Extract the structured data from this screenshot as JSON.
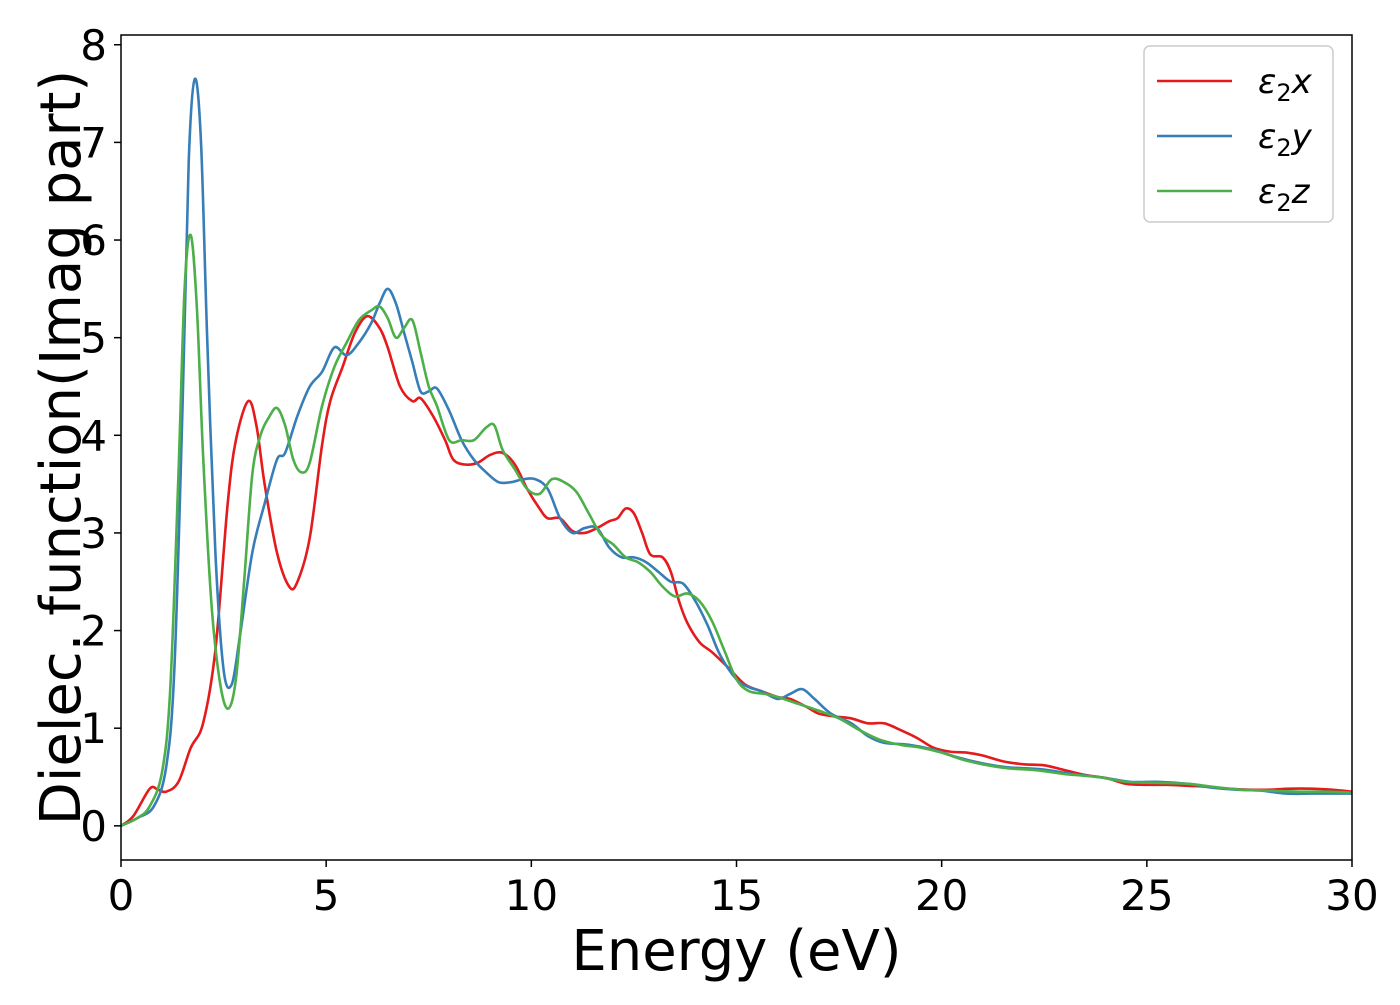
{
  "chart_data": {
    "type": "line",
    "xlabel": "Energy (eV)",
    "ylabel": "Dielec. function(Imag part)",
    "xlim": [
      0,
      30
    ],
    "ylim": [
      -0.35,
      8.1
    ],
    "xticks": [
      0,
      5,
      10,
      15,
      20,
      25,
      30
    ],
    "yticks": [
      0,
      1,
      2,
      3,
      4,
      5,
      6,
      7,
      8
    ],
    "grid": false,
    "legend_position": "top-right",
    "series": [
      {
        "name": "ε₂x",
        "label_main": "ε",
        "label_sub": "2",
        "label_tail": "x",
        "color": "#e41a1c",
        "points": [
          [
            0,
            0
          ],
          [
            0.3,
            0.1
          ],
          [
            0.7,
            0.38
          ],
          [
            0.9,
            0.37
          ],
          [
            1.1,
            0.35
          ],
          [
            1.4,
            0.45
          ],
          [
            1.7,
            0.8
          ],
          [
            2.0,
            1.05
          ],
          [
            2.3,
            1.8
          ],
          [
            2.6,
            3.3
          ],
          [
            2.8,
            3.95
          ],
          [
            3.1,
            4.35
          ],
          [
            3.3,
            4.1
          ],
          [
            3.5,
            3.5
          ],
          [
            3.8,
            2.8
          ],
          [
            4.1,
            2.45
          ],
          [
            4.3,
            2.5
          ],
          [
            4.6,
            2.95
          ],
          [
            4.9,
            3.9
          ],
          [
            5.1,
            4.35
          ],
          [
            5.4,
            4.7
          ],
          [
            5.7,
            5.05
          ],
          [
            6.0,
            5.22
          ],
          [
            6.3,
            5.1
          ],
          [
            6.5,
            4.9
          ],
          [
            6.8,
            4.5
          ],
          [
            7.1,
            4.35
          ],
          [
            7.3,
            4.38
          ],
          [
            7.6,
            4.2
          ],
          [
            7.9,
            3.95
          ],
          [
            8.1,
            3.75
          ],
          [
            8.4,
            3.7
          ],
          [
            8.7,
            3.72
          ],
          [
            9.0,
            3.8
          ],
          [
            9.3,
            3.82
          ],
          [
            9.6,
            3.7
          ],
          [
            9.9,
            3.45
          ],
          [
            10.2,
            3.25
          ],
          [
            10.4,
            3.15
          ],
          [
            10.7,
            3.15
          ],
          [
            11.0,
            3.02
          ],
          [
            11.3,
            3.0
          ],
          [
            11.6,
            3.05
          ],
          [
            11.9,
            3.12
          ],
          [
            12.1,
            3.15
          ],
          [
            12.3,
            3.25
          ],
          [
            12.5,
            3.2
          ],
          [
            12.7,
            3.0
          ],
          [
            12.9,
            2.78
          ],
          [
            13.2,
            2.75
          ],
          [
            13.4,
            2.6
          ],
          [
            13.6,
            2.3
          ],
          [
            13.8,
            2.08
          ],
          [
            14.1,
            1.88
          ],
          [
            14.4,
            1.78
          ],
          [
            14.8,
            1.62
          ],
          [
            15.2,
            1.45
          ],
          [
            15.6,
            1.38
          ],
          [
            16.0,
            1.32
          ],
          [
            16.3,
            1.3
          ],
          [
            16.7,
            1.22
          ],
          [
            17.0,
            1.15
          ],
          [
            17.4,
            1.12
          ],
          [
            17.8,
            1.1
          ],
          [
            18.2,
            1.05
          ],
          [
            18.6,
            1.05
          ],
          [
            19.0,
            0.98
          ],
          [
            19.4,
            0.9
          ],
          [
            19.8,
            0.8
          ],
          [
            20.2,
            0.76
          ],
          [
            20.6,
            0.75
          ],
          [
            21.0,
            0.72
          ],
          [
            21.5,
            0.66
          ],
          [
            22.0,
            0.63
          ],
          [
            22.5,
            0.62
          ],
          [
            23.0,
            0.57
          ],
          [
            23.5,
            0.52
          ],
          [
            24.0,
            0.49
          ],
          [
            24.5,
            0.43
          ],
          [
            25.0,
            0.42
          ],
          [
            25.5,
            0.42
          ],
          [
            26.0,
            0.41
          ],
          [
            26.5,
            0.4
          ],
          [
            27.0,
            0.38
          ],
          [
            27.5,
            0.37
          ],
          [
            28.0,
            0.37
          ],
          [
            28.5,
            0.38
          ],
          [
            29.0,
            0.38
          ],
          [
            29.5,
            0.37
          ],
          [
            30.0,
            0.35
          ]
        ]
      },
      {
        "name": "ε₂y",
        "label_main": "ε",
        "label_sub": "2",
        "label_tail": "y",
        "color": "#377eb8",
        "points": [
          [
            0,
            0
          ],
          [
            0.4,
            0.08
          ],
          [
            0.8,
            0.2
          ],
          [
            1.1,
            0.6
          ],
          [
            1.3,
            1.6
          ],
          [
            1.5,
            4.3
          ],
          [
            1.65,
            6.8
          ],
          [
            1.8,
            7.65
          ],
          [
            1.95,
            7.0
          ],
          [
            2.1,
            5.0
          ],
          [
            2.3,
            2.8
          ],
          [
            2.5,
            1.6
          ],
          [
            2.7,
            1.45
          ],
          [
            2.9,
            1.95
          ],
          [
            3.2,
            2.8
          ],
          [
            3.5,
            3.3
          ],
          [
            3.8,
            3.75
          ],
          [
            4.0,
            3.82
          ],
          [
            4.3,
            4.2
          ],
          [
            4.6,
            4.5
          ],
          [
            4.9,
            4.65
          ],
          [
            5.2,
            4.9
          ],
          [
            5.5,
            4.82
          ],
          [
            5.8,
            4.95
          ],
          [
            6.1,
            5.15
          ],
          [
            6.3,
            5.35
          ],
          [
            6.5,
            5.5
          ],
          [
            6.7,
            5.35
          ],
          [
            6.9,
            5.05
          ],
          [
            7.1,
            4.75
          ],
          [
            7.3,
            4.45
          ],
          [
            7.5,
            4.45
          ],
          [
            7.7,
            4.48
          ],
          [
            8.0,
            4.25
          ],
          [
            8.3,
            3.95
          ],
          [
            8.6,
            3.75
          ],
          [
            8.9,
            3.62
          ],
          [
            9.2,
            3.52
          ],
          [
            9.5,
            3.52
          ],
          [
            9.8,
            3.55
          ],
          [
            10.1,
            3.55
          ],
          [
            10.4,
            3.45
          ],
          [
            10.7,
            3.15
          ],
          [
            11.0,
            3.0
          ],
          [
            11.3,
            3.05
          ],
          [
            11.6,
            3.05
          ],
          [
            11.9,
            2.85
          ],
          [
            12.2,
            2.75
          ],
          [
            12.5,
            2.75
          ],
          [
            12.8,
            2.7
          ],
          [
            13.1,
            2.6
          ],
          [
            13.4,
            2.5
          ],
          [
            13.7,
            2.48
          ],
          [
            14.0,
            2.3
          ],
          [
            14.3,
            2.05
          ],
          [
            14.6,
            1.75
          ],
          [
            15.0,
            1.5
          ],
          [
            15.3,
            1.42
          ],
          [
            15.6,
            1.38
          ],
          [
            16.0,
            1.3
          ],
          [
            16.3,
            1.35
          ],
          [
            16.6,
            1.4
          ],
          [
            16.9,
            1.3
          ],
          [
            17.3,
            1.15
          ],
          [
            17.8,
            1.05
          ],
          [
            18.2,
            0.92
          ],
          [
            18.6,
            0.85
          ],
          [
            19.2,
            0.83
          ],
          [
            19.8,
            0.78
          ],
          [
            20.4,
            0.7
          ],
          [
            21.0,
            0.64
          ],
          [
            21.6,
            0.6
          ],
          [
            22.4,
            0.58
          ],
          [
            23.2,
            0.53
          ],
          [
            24.0,
            0.49
          ],
          [
            24.6,
            0.45
          ],
          [
            25.3,
            0.45
          ],
          [
            26.0,
            0.43
          ],
          [
            26.6,
            0.39
          ],
          [
            27.2,
            0.37
          ],
          [
            27.8,
            0.36
          ],
          [
            28.4,
            0.33
          ],
          [
            29.0,
            0.33
          ],
          [
            29.5,
            0.33
          ],
          [
            30.0,
            0.33
          ]
        ]
      },
      {
        "name": "ε₂z",
        "label_main": "ε",
        "label_sub": "2",
        "label_tail": "z",
        "color": "#4daf4a",
        "points": [
          [
            0,
            0
          ],
          [
            0.4,
            0.08
          ],
          [
            0.7,
            0.2
          ],
          [
            1.0,
            0.55
          ],
          [
            1.2,
            1.4
          ],
          [
            1.4,
            3.6
          ],
          [
            1.55,
            5.5
          ],
          [
            1.7,
            6.05
          ],
          [
            1.85,
            5.3
          ],
          [
            2.0,
            3.8
          ],
          [
            2.2,
            2.3
          ],
          [
            2.4,
            1.5
          ],
          [
            2.6,
            1.2
          ],
          [
            2.8,
            1.5
          ],
          [
            3.0,
            2.5
          ],
          [
            3.2,
            3.6
          ],
          [
            3.4,
            4.0
          ],
          [
            3.6,
            4.18
          ],
          [
            3.8,
            4.28
          ],
          [
            4.0,
            4.1
          ],
          [
            4.2,
            3.75
          ],
          [
            4.4,
            3.62
          ],
          [
            4.6,
            3.72
          ],
          [
            4.9,
            4.3
          ],
          [
            5.2,
            4.7
          ],
          [
            5.5,
            4.95
          ],
          [
            5.8,
            5.18
          ],
          [
            6.1,
            5.28
          ],
          [
            6.3,
            5.32
          ],
          [
            6.5,
            5.2
          ],
          [
            6.7,
            5.0
          ],
          [
            6.9,
            5.1
          ],
          [
            7.1,
            5.18
          ],
          [
            7.3,
            4.85
          ],
          [
            7.5,
            4.5
          ],
          [
            7.7,
            4.3
          ],
          [
            8.0,
            3.95
          ],
          [
            8.3,
            3.95
          ],
          [
            8.6,
            3.95
          ],
          [
            8.9,
            4.08
          ],
          [
            9.1,
            4.1
          ],
          [
            9.3,
            3.85
          ],
          [
            9.6,
            3.65
          ],
          [
            9.9,
            3.45
          ],
          [
            10.2,
            3.4
          ],
          [
            10.5,
            3.55
          ],
          [
            10.8,
            3.52
          ],
          [
            11.1,
            3.42
          ],
          [
            11.4,
            3.2
          ],
          [
            11.7,
            2.98
          ],
          [
            12.0,
            2.88
          ],
          [
            12.3,
            2.75
          ],
          [
            12.6,
            2.7
          ],
          [
            12.9,
            2.6
          ],
          [
            13.2,
            2.45
          ],
          [
            13.5,
            2.35
          ],
          [
            13.8,
            2.38
          ],
          [
            14.1,
            2.3
          ],
          [
            14.4,
            2.1
          ],
          [
            14.7,
            1.8
          ],
          [
            15.0,
            1.5
          ],
          [
            15.3,
            1.38
          ],
          [
            15.7,
            1.35
          ],
          [
            16.0,
            1.32
          ],
          [
            16.5,
            1.25
          ],
          [
            17.0,
            1.18
          ],
          [
            17.5,
            1.1
          ],
          [
            18.0,
            0.98
          ],
          [
            18.5,
            0.88
          ],
          [
            19.0,
            0.83
          ],
          [
            19.5,
            0.8
          ],
          [
            20.0,
            0.75
          ],
          [
            20.5,
            0.68
          ],
          [
            21.0,
            0.63
          ],
          [
            21.6,
            0.59
          ],
          [
            22.3,
            0.57
          ],
          [
            23.0,
            0.53
          ],
          [
            23.8,
            0.5
          ],
          [
            24.5,
            0.45
          ],
          [
            25.2,
            0.44
          ],
          [
            26.0,
            0.43
          ],
          [
            26.6,
            0.4
          ],
          [
            27.3,
            0.37
          ],
          [
            28.0,
            0.36
          ],
          [
            28.7,
            0.35
          ],
          [
            29.4,
            0.35
          ],
          [
            30.0,
            0.34
          ]
        ]
      }
    ]
  }
}
